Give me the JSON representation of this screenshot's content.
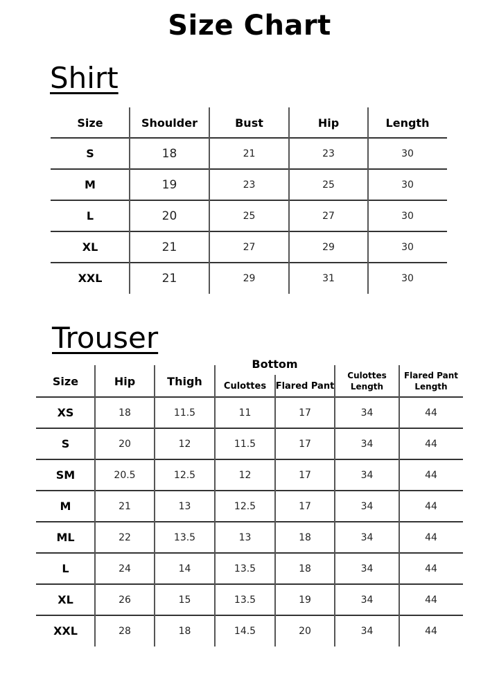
{
  "title": "Size Chart",
  "shirt": {
    "heading": "Shirt",
    "columns": [
      "Size",
      "Shoulder",
      "Bust",
      "Hip",
      "Length"
    ],
    "rows": [
      [
        "S",
        "18",
        "21",
        "23",
        "30"
      ],
      [
        "M",
        "19",
        "23",
        "25",
        "30"
      ],
      [
        "L",
        "20",
        "25",
        "27",
        "30"
      ],
      [
        "XL",
        "21",
        "27",
        "29",
        "30"
      ],
      [
        "XXL",
        "21",
        "29",
        "31",
        "30"
      ]
    ]
  },
  "trouser": {
    "heading": "Trouser",
    "group_header": "Bottom",
    "columns": [
      "Size",
      "Hip",
      "Thigh",
      "Culottes",
      "Flared Pant",
      "Culottes Length",
      "Flared Pant Length"
    ],
    "rows": [
      [
        "XS",
        "18",
        "11.5",
        "11",
        "17",
        "34",
        "44"
      ],
      [
        "S",
        "20",
        "12",
        "11.5",
        "17",
        "34",
        "44"
      ],
      [
        "SM",
        "20.5",
        "12.5",
        "12",
        "17",
        "34",
        "44"
      ],
      [
        "M",
        "21",
        "13",
        "12.5",
        "17",
        "34",
        "44"
      ],
      [
        "ML",
        "22",
        "13.5",
        "13",
        "18",
        "34",
        "44"
      ],
      [
        "L",
        "24",
        "14",
        "13.5",
        "18",
        "34",
        "44"
      ],
      [
        "XL",
        "26",
        "15",
        "13.5",
        "19",
        "34",
        "44"
      ],
      [
        "XXL",
        "28",
        "18",
        "14.5",
        "20",
        "34",
        "44"
      ]
    ]
  }
}
